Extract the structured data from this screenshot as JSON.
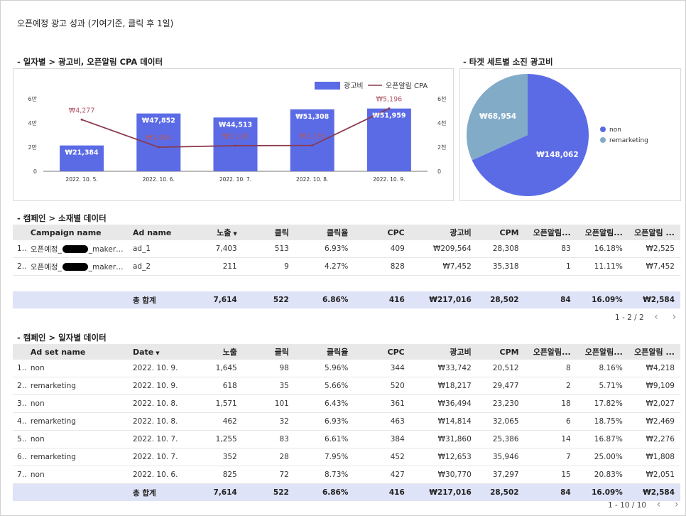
{
  "page": {
    "title": "오픈예정 광고 성과 (기여기준, 클릭 후 1일)"
  },
  "sections": {
    "daily": "- 일자별 > 광고비, 오픈알림 CPA 데이터",
    "target": "- 타겟 세트별 소진 광고비",
    "creative": "- 캠페인 > 소재별 데이터",
    "byday": "- 캠페인 > 일자별 데이터"
  },
  "chart_data": [
    {
      "type": "bar",
      "categories": [
        "2022. 10. 5.",
        "2022. 10. 6.",
        "2022. 10. 7.",
        "2022. 10. 8.",
        "2022. 10. 9."
      ],
      "series": [
        {
          "name": "광고비",
          "type": "bar",
          "axis": "left",
          "values": [
            21384,
            47852,
            44513,
            51308,
            51959
          ],
          "labels": [
            "₩21,384",
            "₩47,852",
            "₩44,513",
            "₩51,308",
            "₩51,959"
          ],
          "color": "#5b6be6"
        },
        {
          "name": "오픈알림 CPA",
          "type": "line",
          "axis": "right",
          "values": [
            4277,
            1994,
            2120,
            2138,
            5196
          ],
          "labels": [
            "₩4,277",
            "₩1,994",
            "₩2,120",
            "₩2,138",
            "₩5,196"
          ],
          "color": "#8b3a4e"
        }
      ],
      "left_ticks": [
        "0",
        "2만",
        "4만",
        "6만"
      ],
      "left_ylim": [
        0,
        60000
      ],
      "right_ticks": [
        "0",
        "2천",
        "4천",
        "6천"
      ],
      "right_ylim": [
        0,
        6000
      ],
      "legend": "top-right",
      "grid": false
    },
    {
      "type": "pie",
      "categories": [
        "non",
        "remarketing"
      ],
      "values": [
        148062,
        68954
      ],
      "labels": [
        "₩148,062",
        "₩68,954"
      ],
      "colors": [
        "#5b6be6",
        "#82abc8"
      ],
      "legend": "right"
    }
  ],
  "table1": {
    "headers": [
      "Campaign name",
      "Ad name",
      "노출",
      "클릭",
      "클릭율",
      "CPC",
      "광고비",
      "CPM",
      "오픈알림...",
      "오픈알림...",
      "오픈알림 ..."
    ],
    "rows": [
      {
        "idx": "1.",
        "pre": "오픈예정_",
        "post": "_maker_...",
        "ad": "ad_1",
        "v": [
          "7,403",
          "513",
          "6.93%",
          "409",
          "₩209,564",
          "28,308",
          "83",
          "16.18%",
          "₩2,525"
        ]
      },
      {
        "idx": "2.",
        "pre": "오픈예정_",
        "post": "_maker_...",
        "ad": "ad_2",
        "v": [
          "211",
          "9",
          "4.27%",
          "828",
          "₩7,452",
          "35,318",
          "1",
          "11.11%",
          "₩7,452"
        ]
      }
    ],
    "total": {
      "label": "총 합계",
      "v": [
        "7,614",
        "522",
        "6.86%",
        "416",
        "₩217,016",
        "28,502",
        "84",
        "16.09%",
        "₩2,584"
      ]
    },
    "pager": "1 - 2 / 2"
  },
  "table2": {
    "headers": [
      "Ad set name",
      "Date",
      "노출",
      "클릭",
      "클릭율",
      "CPC",
      "광고비",
      "CPM",
      "오픈알림...",
      "오픈알림...",
      "오픈알림 ..."
    ],
    "rows": [
      {
        "idx": "1.",
        "name": "non",
        "date": "2022. 10. 9.",
        "v": [
          "1,645",
          "98",
          "5.96%",
          "344",
          "₩33,742",
          "20,512",
          "8",
          "8.16%",
          "₩4,218"
        ]
      },
      {
        "idx": "2.",
        "name": "remarketing",
        "date": "2022. 10. 9.",
        "v": [
          "618",
          "35",
          "5.66%",
          "520",
          "₩18,217",
          "29,477",
          "2",
          "5.71%",
          "₩9,109"
        ]
      },
      {
        "idx": "3.",
        "name": "non",
        "date": "2022. 10. 8.",
        "v": [
          "1,571",
          "101",
          "6.43%",
          "361",
          "₩36,494",
          "23,230",
          "18",
          "17.82%",
          "₩2,027"
        ]
      },
      {
        "idx": "4.",
        "name": "remarketing",
        "date": "2022. 10. 8.",
        "v": [
          "462",
          "32",
          "6.93%",
          "463",
          "₩14,814",
          "32,065",
          "6",
          "18.75%",
          "₩2,469"
        ]
      },
      {
        "idx": "5.",
        "name": "non",
        "date": "2022. 10. 7.",
        "v": [
          "1,255",
          "83",
          "6.61%",
          "384",
          "₩31,860",
          "25,386",
          "14",
          "16.87%",
          "₩2,276"
        ]
      },
      {
        "idx": "6.",
        "name": "remarketing",
        "date": "2022. 10. 7.",
        "v": [
          "352",
          "28",
          "7.95%",
          "452",
          "₩12,653",
          "35,946",
          "7",
          "25.00%",
          "₩1,808"
        ]
      },
      {
        "idx": "7.",
        "name": "non",
        "date": "2022. 10. 6.",
        "v": [
          "825",
          "72",
          "8.73%",
          "427",
          "₩30,770",
          "37,297",
          "15",
          "20.83%",
          "₩2,051"
        ]
      }
    ],
    "total": {
      "label": "총 합계",
      "v": [
        "7,614",
        "522",
        "6.86%",
        "416",
        "₩217,016",
        "28,502",
        "84",
        "16.09%",
        "₩2,584"
      ]
    },
    "pager": "1 - 10 / 10"
  },
  "icons": {
    "sort": "sort-desc-icon",
    "prev": "chevron-left-icon",
    "next": "chevron-right-icon"
  }
}
